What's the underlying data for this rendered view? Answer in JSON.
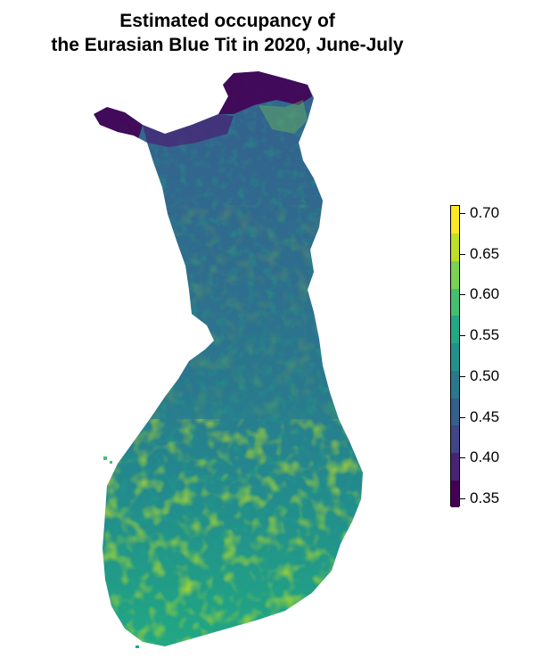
{
  "title": {
    "line1": "Estimated occupancy of",
    "line2": "the Eurasian Blue Tit in 2020, June-July"
  },
  "legend": {
    "min": 0.34,
    "max": 0.71,
    "ticks": [
      "0.70",
      "0.65",
      "0.60",
      "0.55",
      "0.50",
      "0.45",
      "0.40",
      "0.35"
    ],
    "colors": [
      "#440154",
      "#482475",
      "#414487",
      "#355f8d",
      "#2a788e",
      "#21918c",
      "#22a884",
      "#44bf70",
      "#7ad151",
      "#bddf26",
      "#fde725"
    ]
  },
  "map": {
    "region": "Finland",
    "palette": "viridis"
  }
}
